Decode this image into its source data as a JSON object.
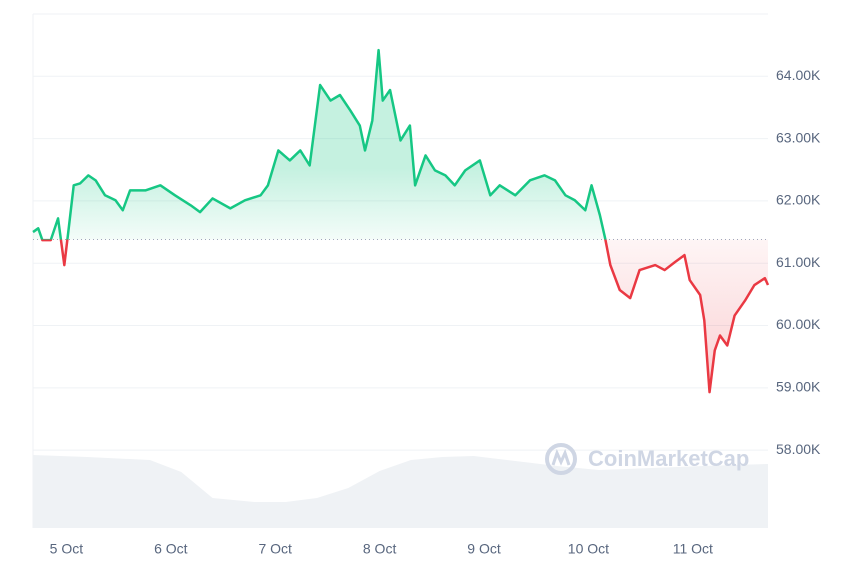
{
  "chart_data": {
    "type": "line",
    "x": [
      4.68,
      4.73,
      4.77,
      4.85,
      4.92,
      4.98,
      5.02,
      5.07,
      5.13,
      5.21,
      5.28,
      5.37,
      5.47,
      5.54,
      5.61,
      5.76,
      5.9,
      6.04,
      6.19,
      6.28,
      6.4,
      6.57,
      6.71,
      6.86,
      6.93,
      7.03,
      7.14,
      7.24,
      7.33,
      7.43,
      7.53,
      7.62,
      7.72,
      7.81,
      7.86,
      7.93,
      7.99,
      8.03,
      8.1,
      8.2,
      8.29,
      8.34,
      8.44,
      8.53,
      8.63,
      8.72,
      8.82,
      8.96,
      9.06,
      9.15,
      9.3,
      9.44,
      9.58,
      9.68,
      9.78,
      9.87,
      9.97,
      10.03,
      10.11,
      10.16,
      10.21,
      10.3,
      10.4,
      10.49,
      10.64,
      10.73,
      10.83,
      10.92,
      10.97,
      11.07,
      11.11,
      11.16,
      11.21,
      11.26,
      11.33,
      11.4,
      11.5,
      11.59,
      11.69,
      11.72
    ],
    "values": [
      61500,
      61560,
      61370,
      61370,
      61720,
      60970,
      61530,
      62250,
      62280,
      62410,
      62330,
      62090,
      62010,
      61850,
      62170,
      62170,
      62250,
      62090,
      61930,
      61820,
      62040,
      61880,
      62010,
      62090,
      62250,
      62810,
      62650,
      62810,
      62570,
      63860,
      63610,
      63700,
      63450,
      63210,
      62810,
      63290,
      64420,
      63610,
      63780,
      62970,
      63210,
      62250,
      62730,
      62490,
      62410,
      62250,
      62490,
      62650,
      62090,
      62250,
      62090,
      62330,
      62410,
      62330,
      62090,
      62010,
      61850,
      62250,
      61770,
      61400,
      60970,
      60570,
      60440,
      60890,
      60970,
      60890,
      61020,
      61130,
      60730,
      60490,
      60080,
      58930,
      59600,
      59840,
      59680,
      60160,
      60400,
      60650,
      60760,
      60650
    ],
    "baseline": 61380,
    "color_up": "#16c784",
    "color_down": "#ea3943",
    "xlim": [
      4.68,
      11.72
    ],
    "xticks": [
      {
        "value": 5,
        "label": "5 Oct"
      },
      {
        "value": 6,
        "label": "6 Oct"
      },
      {
        "value": 7,
        "label": "7 Oct"
      },
      {
        "value": 8,
        "label": "8 Oct"
      },
      {
        "value": 9,
        "label": "9 Oct"
      },
      {
        "value": 10,
        "label": "10 Oct"
      },
      {
        "value": 11,
        "label": "11 Oct"
      }
    ],
    "ylim": [
      56750,
      65000
    ],
    "yticks": [
      {
        "value": 58000,
        "label": "58.00K"
      },
      {
        "value": 59000,
        "label": "59.00K"
      },
      {
        "value": 60000,
        "label": "60.00K"
      },
      {
        "value": 61000,
        "label": "61.00K"
      },
      {
        "value": 62000,
        "label": "62.00K"
      },
      {
        "value": 63000,
        "label": "63.00K"
      },
      {
        "value": 64000,
        "label": "64.00K"
      }
    ],
    "grid": true,
    "volume": {
      "x": [
        4.68,
        5.2,
        5.8,
        6.1,
        6.4,
        6.8,
        7.1,
        7.4,
        7.7,
        8.0,
        8.3,
        8.6,
        8.9,
        9.3,
        9.7,
        10.1,
        10.6,
        11.1,
        11.72
      ],
      "values": [
        73,
        71,
        68,
        56,
        30,
        26,
        26,
        30,
        40,
        57,
        68,
        71,
        72,
        67,
        62,
        58,
        60,
        62,
        64
      ],
      "ylim": [
        0,
        100
      ],
      "color": "#eff2f5"
    },
    "watermark": "CoinMarketCap"
  }
}
